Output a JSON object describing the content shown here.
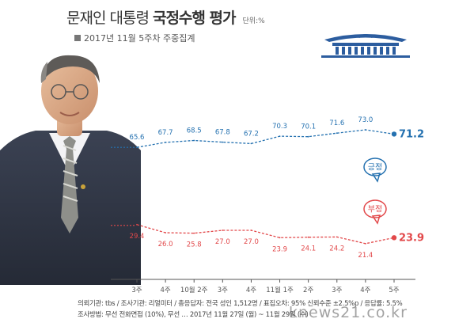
{
  "header": {
    "title_part1": "문재인 대통령",
    "title_part2": "국정수행 평가",
    "unit": "단위:%",
    "subtitle": "2017년 11월 5주차 주중집계"
  },
  "notes": {
    "line1": "의뢰기관: tbs / 조사기관: 리얼미터 / 총응답자: 전국 성인 1,512명 / 표집오차: 95% 신뢰수준 ±2.5%p / 응답률: 5.5%",
    "line2": "조사방법: 무선 전화면접 (10%), 무선 … 2017년 11월 27일 (월) ~ 11월 29일 (수)"
  },
  "watermark": "knews21.co.kr",
  "colors": {
    "positive": "#2471b0",
    "negative": "#e2484a",
    "axis": "#555555"
  },
  "icons": {
    "bluehouse": "blue-house-icon",
    "portrait": "president-portrait"
  },
  "chart_data": {
    "type": "line",
    "categories": [
      "3주",
      "4주",
      "10월 2주",
      "3주",
      "4주",
      "11월 1주",
      "2주",
      "3주",
      "4주",
      "5주"
    ],
    "series": [
      {
        "name": "긍정",
        "values": [
          65.6,
          67.7,
          68.5,
          67.8,
          67.2,
          70.3,
          70.1,
          71.6,
          73.0,
          71.2
        ],
        "labels": [
          "65.6",
          "67.7",
          "68.5",
          "67.8",
          "67.2",
          "70.3",
          "70.1",
          "71.6",
          "73.0",
          "71.2"
        ]
      },
      {
        "name": "부정",
        "values": [
          29.4,
          26.0,
          25.8,
          27.0,
          27.0,
          23.9,
          24.1,
          24.2,
          21.4,
          23.9
        ],
        "labels": [
          "29.4",
          "26.0",
          "25.8",
          "27.0",
          "27.0",
          "23.9",
          "24.1",
          "24.2",
          "21.4",
          "23.9"
        ]
      }
    ]
  }
}
